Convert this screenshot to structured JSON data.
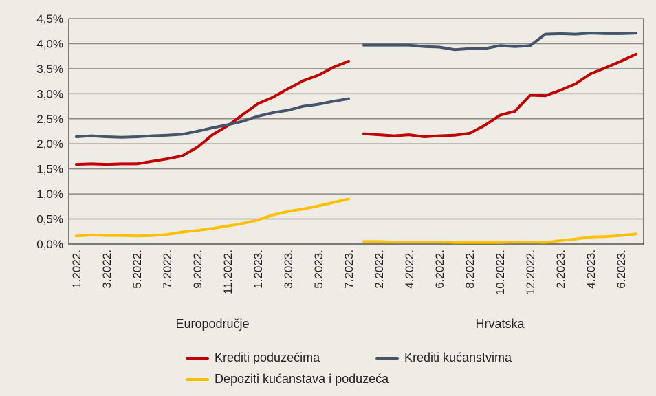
{
  "chart_data": {
    "type": "line",
    "title": "",
    "xlabel": "",
    "ylabel": "",
    "ylim": [
      0,
      4.5
    ],
    "yticks": [
      "0,0%",
      "0,5%",
      "1,0%",
      "1,5%",
      "2,0%",
      "2,5%",
      "3,0%",
      "3,5%",
      "4,0%",
      "4,5%"
    ],
    "grid": true,
    "legend_position": "bottom",
    "groups": [
      {
        "name": "Europodručje",
        "months": [
          "1.2022.",
          "2.2022.",
          "3.2022.",
          "4.2022.",
          "5.2022.",
          "6.2022.",
          "7.2022.",
          "8.2022.",
          "9.2022.",
          "10.2022.",
          "11.2022.",
          "12.2022.",
          "1.2023.",
          "2.2023.",
          "3.2023.",
          "4.2023.",
          "5.2023.",
          "6.2023.",
          "7.2023."
        ],
        "tick_labels": [
          "1.2022.",
          "3.2022.",
          "5.2022.",
          "7.2022.",
          "9.2022.",
          "11.2022.",
          "1.2023.",
          "3.2023.",
          "5.2023.",
          "7.2023."
        ],
        "series": [
          {
            "name": "Krediti poduzećima",
            "values": [
              1.59,
              1.6,
              1.59,
              1.6,
              1.6,
              1.65,
              1.7,
              1.76,
              1.93,
              2.18,
              2.36,
              2.58,
              2.8,
              2.93,
              3.1,
              3.26,
              3.37,
              3.53,
              3.65
            ]
          },
          {
            "name": "Krediti kućanstvima",
            "values": [
              2.14,
              2.16,
              2.14,
              2.13,
              2.14,
              2.16,
              2.17,
              2.19,
              2.25,
              2.32,
              2.38,
              2.45,
              2.55,
              2.62,
              2.67,
              2.75,
              2.79,
              2.85,
              2.9
            ]
          },
          {
            "name": "Depoziti kućanstava i poduzeća",
            "values": [
              0.16,
              0.18,
              0.17,
              0.17,
              0.16,
              0.17,
              0.19,
              0.24,
              0.27,
              0.31,
              0.36,
              0.41,
              0.48,
              0.58,
              0.65,
              0.7,
              0.76,
              0.83,
              0.9
            ]
          }
        ]
      },
      {
        "name": "Hrvatska",
        "months": [
          "1.2022.",
          "2.2022.",
          "3.2022.",
          "4.2022.",
          "5.2022.",
          "6.2022.",
          "7.2022.",
          "8.2022.",
          "9.2022.",
          "10.2022.",
          "11.2022.",
          "12.2022.",
          "1.2023.",
          "2.2023.",
          "3.2023.",
          "4.2023.",
          "5.2023.",
          "6.2023.",
          "7.2023."
        ],
        "tick_labels": [
          "2.2022.",
          "4.2022.",
          "6.2022.",
          "8.2022.",
          "10.2022.",
          "12.2022.",
          "2.2023.",
          "4.2023.",
          "6.2023."
        ],
        "series": [
          {
            "name": "Krediti poduzećima",
            "values": [
              2.2,
              2.18,
              2.16,
              2.18,
              2.14,
              2.16,
              2.17,
              2.21,
              2.37,
              2.57,
              2.65,
              2.97,
              2.96,
              3.07,
              3.2,
              3.4,
              3.52,
              3.65,
              3.79
            ]
          },
          {
            "name": "Krediti kućanstvima",
            "values": [
              3.97,
              3.97,
              3.97,
              3.97,
              3.94,
              3.93,
              3.88,
              3.9,
              3.9,
              3.96,
              3.94,
              3.96,
              4.19,
              4.2,
              4.19,
              4.21,
              4.2,
              4.2,
              4.21
            ]
          },
          {
            "name": "Depoziti kućanstava i poduzeća",
            "values": [
              0.05,
              0.05,
              0.04,
              0.04,
              0.04,
              0.04,
              0.03,
              0.03,
              0.03,
              0.03,
              0.04,
              0.04,
              0.03,
              0.07,
              0.1,
              0.14,
              0.15,
              0.17,
              0.2
            ]
          }
        ]
      }
    ],
    "legend": [
      {
        "label": "Krediti poduzećima",
        "color": "#c00000"
      },
      {
        "label": "Krediti kućanstvima",
        "color": "#44546a"
      },
      {
        "label": "Depoziti kućanstava i poduzeća",
        "color": "#ffc000"
      }
    ]
  }
}
